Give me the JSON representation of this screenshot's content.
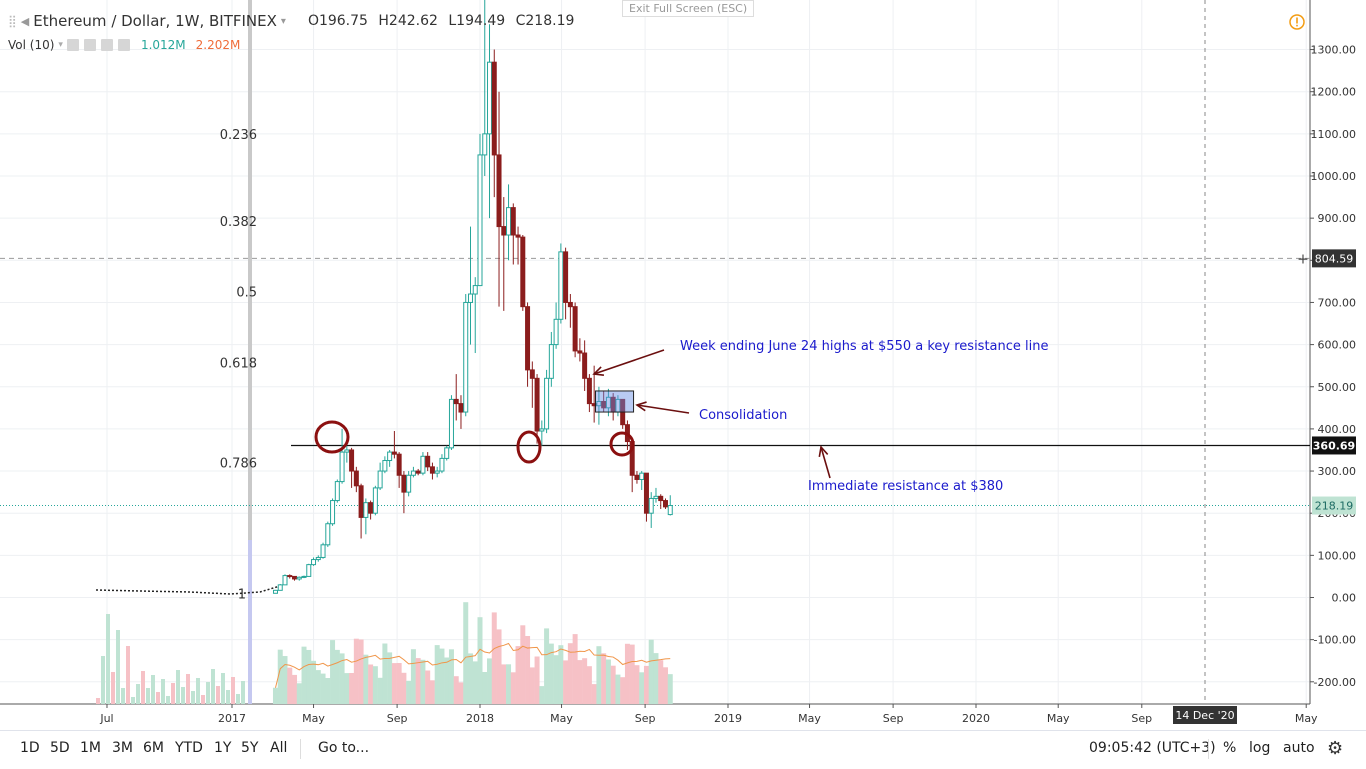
{
  "header": {
    "symbol": "Ethereum / Dollar, 1W, BITFINEX",
    "open": "O196.75",
    "high": "H242.62",
    "low": "L194.49",
    "close": "C218.19",
    "exit_fullscreen": "Exit Full Screen (ESC)"
  },
  "volume_legend": {
    "label": "Vol (10)",
    "value1": "1.012M",
    "value2": "2.202M"
  },
  "price_labels": {
    "dashed_level": "804.59",
    "support_level": "360.69",
    "last_price": "218.19"
  },
  "crosshair_date": "14 Dec '20",
  "bottom_toolbar": {
    "ranges": [
      "1D",
      "5D",
      "1M",
      "3M",
      "6M",
      "YTD",
      "1Y",
      "5Y",
      "All"
    ],
    "goto": "Go to...",
    "time": "09:05:42 (UTC+3)",
    "percent": "%",
    "log": "log",
    "auto": "auto"
  },
  "annotations": {
    "resistance_note": "Week ending June 24 highs at $550 a key resistance line",
    "consolidation": "Consolidation",
    "immediate": "Immediate resistance at $380"
  },
  "colors": {
    "up": "#26a69a",
    "down": "#8b1d1d",
    "vol_up": "#bfe3d3",
    "vol_down": "#f6c1c6",
    "annotation_text": "#1a1acc",
    "circle": "#8b1010",
    "ma": "#f0964a",
    "fib": "#333333"
  },
  "chart_data": {
    "type": "candlestick",
    "title": "Ethereum / Dollar, 1W, BITFINEX",
    "y_axis_ticks": [
      -200,
      -100,
      0,
      100,
      200,
      300,
      400,
      500,
      600,
      700,
      800,
      900,
      1000,
      1100,
      1200,
      1300
    ],
    "x_axis_ticks": [
      "Jul",
      "2017",
      "May",
      "Sep",
      "2018",
      "May",
      "Sep",
      "2019",
      "May",
      "Sep",
      "2020",
      "May",
      "Sep",
      "May"
    ],
    "fib_levels": [
      {
        "label": "0.236",
        "price": 1100
      },
      {
        "label": "0.382",
        "price": 893
      },
      {
        "label": "0.5",
        "price": 726
      },
      {
        "label": "0.618",
        "price": 558
      },
      {
        "label": "0.786",
        "price": 320
      },
      {
        "label": "1",
        "price": 10
      }
    ],
    "horizontal_lines": [
      {
        "price": 804.59,
        "style": "dashed"
      },
      {
        "price": 360.69,
        "style": "solid"
      },
      {
        "price": 218.19,
        "style": "dotted"
      }
    ],
    "consolidation_box": {
      "from": "2018-06-20",
      "to": "2018-08-15",
      "low": 440,
      "high": 490
    },
    "candles_weekly": [
      {
        "t": "2017-03-06",
        "o": 10,
        "h": 18,
        "l": 10,
        "c": 17
      },
      {
        "t": "2017-03-13",
        "o": 17,
        "h": 32,
        "l": 17,
        "c": 30
      },
      {
        "t": "2017-03-20",
        "o": 30,
        "h": 55,
        "l": 30,
        "c": 52
      },
      {
        "t": "2017-03-27",
        "o": 52,
        "h": 55,
        "l": 45,
        "c": 50
      },
      {
        "t": "2017-04-03",
        "o": 50,
        "h": 50,
        "l": 40,
        "c": 44
      },
      {
        "t": "2017-04-10",
        "o": 44,
        "h": 50,
        "l": 40,
        "c": 48
      },
      {
        "t": "2017-04-17",
        "o": 48,
        "h": 52,
        "l": 46,
        "c": 50
      },
      {
        "t": "2017-04-24",
        "o": 50,
        "h": 80,
        "l": 50,
        "c": 78
      },
      {
        "t": "2017-05-01",
        "o": 78,
        "h": 95,
        "l": 75,
        "c": 90
      },
      {
        "t": "2017-05-08",
        "o": 90,
        "h": 100,
        "l": 85,
        "c": 95
      },
      {
        "t": "2017-05-15",
        "o": 95,
        "h": 130,
        "l": 92,
        "c": 125
      },
      {
        "t": "2017-05-22",
        "o": 125,
        "h": 180,
        "l": 120,
        "c": 175
      },
      {
        "t": "2017-05-29",
        "o": 175,
        "h": 235,
        "l": 170,
        "c": 230
      },
      {
        "t": "2017-06-05",
        "o": 230,
        "h": 280,
        "l": 225,
        "c": 275
      },
      {
        "t": "2017-06-12",
        "o": 275,
        "h": 400,
        "l": 270,
        "c": 345
      },
      {
        "t": "2017-06-19",
        "o": 345,
        "h": 360,
        "l": 320,
        "c": 350
      },
      {
        "t": "2017-06-26",
        "o": 350,
        "h": 355,
        "l": 260,
        "c": 300
      },
      {
        "t": "2017-07-03",
        "o": 300,
        "h": 310,
        "l": 250,
        "c": 265
      },
      {
        "t": "2017-07-10",
        "o": 265,
        "h": 270,
        "l": 140,
        "c": 190
      },
      {
        "t": "2017-07-17",
        "o": 190,
        "h": 235,
        "l": 150,
        "c": 225
      },
      {
        "t": "2017-07-24",
        "o": 225,
        "h": 230,
        "l": 185,
        "c": 200
      },
      {
        "t": "2017-07-31",
        "o": 200,
        "h": 265,
        "l": 195,
        "c": 260
      },
      {
        "t": "2017-08-07",
        "o": 260,
        "h": 320,
        "l": 255,
        "c": 300
      },
      {
        "t": "2017-08-14",
        "o": 300,
        "h": 335,
        "l": 295,
        "c": 325
      },
      {
        "t": "2017-08-21",
        "o": 325,
        "h": 350,
        "l": 310,
        "c": 345
      },
      {
        "t": "2017-08-28",
        "o": 345,
        "h": 395,
        "l": 330,
        "c": 340
      },
      {
        "t": "2017-09-04",
        "o": 340,
        "h": 345,
        "l": 260,
        "c": 290
      },
      {
        "t": "2017-09-11",
        "o": 290,
        "h": 300,
        "l": 200,
        "c": 250
      },
      {
        "t": "2017-09-18",
        "o": 250,
        "h": 300,
        "l": 240,
        "c": 290
      },
      {
        "t": "2017-09-25",
        "o": 290,
        "h": 310,
        "l": 285,
        "c": 300
      },
      {
        "t": "2017-10-02",
        "o": 300,
        "h": 305,
        "l": 290,
        "c": 295
      },
      {
        "t": "2017-10-09",
        "o": 295,
        "h": 345,
        "l": 290,
        "c": 335
      },
      {
        "t": "2017-10-16",
        "o": 335,
        "h": 345,
        "l": 300,
        "c": 310
      },
      {
        "t": "2017-10-23",
        "o": 310,
        "h": 320,
        "l": 280,
        "c": 295
      },
      {
        "t": "2017-10-30",
        "o": 295,
        "h": 310,
        "l": 285,
        "c": 300
      },
      {
        "t": "2017-11-06",
        "o": 300,
        "h": 340,
        "l": 295,
        "c": 330
      },
      {
        "t": "2017-11-13",
        "o": 330,
        "h": 360,
        "l": 325,
        "c": 355
      },
      {
        "t": "2017-11-20",
        "o": 355,
        "h": 480,
        "l": 350,
        "c": 470
      },
      {
        "t": "2017-11-27",
        "o": 470,
        "h": 530,
        "l": 420,
        "c": 460
      },
      {
        "t": "2017-12-04",
        "o": 460,
        "h": 480,
        "l": 400,
        "c": 440
      },
      {
        "t": "2017-12-11",
        "o": 440,
        "h": 720,
        "l": 430,
        "c": 700
      },
      {
        "t": "2017-12-18",
        "o": 700,
        "h": 880,
        "l": 600,
        "c": 720
      },
      {
        "t": "2017-12-25",
        "o": 720,
        "h": 760,
        "l": 580,
        "c": 740
      },
      {
        "t": "2018-01-01",
        "o": 740,
        "h": 1100,
        "l": 740,
        "c": 1050
      },
      {
        "t": "2018-01-08",
        "o": 1050,
        "h": 1420,
        "l": 1000,
        "c": 1100
      },
      {
        "t": "2018-01-15",
        "o": 1100,
        "h": 1360,
        "l": 900,
        "c": 1270
      },
      {
        "t": "2018-01-22",
        "o": 1270,
        "h": 1300,
        "l": 950,
        "c": 1050
      },
      {
        "t": "2018-01-29",
        "o": 1050,
        "h": 1200,
        "l": 690,
        "c": 880
      },
      {
        "t": "2018-02-05",
        "o": 880,
        "h": 950,
        "l": 680,
        "c": 860
      },
      {
        "t": "2018-02-12",
        "o": 860,
        "h": 980,
        "l": 800,
        "c": 925
      },
      {
        "t": "2018-02-19",
        "o": 925,
        "h": 935,
        "l": 790,
        "c": 860
      },
      {
        "t": "2018-02-26",
        "o": 860,
        "h": 880,
        "l": 790,
        "c": 855
      },
      {
        "t": "2018-03-05",
        "o": 855,
        "h": 860,
        "l": 680,
        "c": 690
      },
      {
        "t": "2018-03-12",
        "o": 690,
        "h": 700,
        "l": 500,
        "c": 540
      },
      {
        "t": "2018-03-19",
        "o": 540,
        "h": 560,
        "l": 450,
        "c": 520
      },
      {
        "t": "2018-03-26",
        "o": 520,
        "h": 530,
        "l": 365,
        "c": 395
      },
      {
        "t": "2018-04-02",
        "o": 395,
        "h": 420,
        "l": 360,
        "c": 400
      },
      {
        "t": "2018-04-09",
        "o": 400,
        "h": 540,
        "l": 390,
        "c": 520
      },
      {
        "t": "2018-04-16",
        "o": 520,
        "h": 630,
        "l": 500,
        "c": 600
      },
      {
        "t": "2018-04-23",
        "o": 600,
        "h": 700,
        "l": 590,
        "c": 660
      },
      {
        "t": "2018-04-30",
        "o": 660,
        "h": 840,
        "l": 650,
        "c": 820
      },
      {
        "t": "2018-05-07",
        "o": 820,
        "h": 830,
        "l": 660,
        "c": 700
      },
      {
        "t": "2018-05-14",
        "o": 700,
        "h": 720,
        "l": 640,
        "c": 690
      },
      {
        "t": "2018-05-21",
        "o": 690,
        "h": 700,
        "l": 570,
        "c": 585
      },
      {
        "t": "2018-05-28",
        "o": 585,
        "h": 615,
        "l": 560,
        "c": 580
      },
      {
        "t": "2018-06-04",
        "o": 580,
        "h": 610,
        "l": 490,
        "c": 520
      },
      {
        "t": "2018-06-11",
        "o": 520,
        "h": 530,
        "l": 440,
        "c": 460
      },
      {
        "t": "2018-06-18",
        "o": 460,
        "h": 550,
        "l": 415,
        "c": 455
      },
      {
        "t": "2018-06-25",
        "o": 455,
        "h": 500,
        "l": 410,
        "c": 465
      },
      {
        "t": "2018-07-02",
        "o": 465,
        "h": 490,
        "l": 440,
        "c": 450
      },
      {
        "t": "2018-07-09",
        "o": 450,
        "h": 495,
        "l": 430,
        "c": 475
      },
      {
        "t": "2018-07-16",
        "o": 475,
        "h": 485,
        "l": 420,
        "c": 440
      },
      {
        "t": "2018-07-23",
        "o": 440,
        "h": 480,
        "l": 430,
        "c": 470
      },
      {
        "t": "2018-07-30",
        "o": 470,
        "h": 470,
        "l": 400,
        "c": 410
      },
      {
        "t": "2018-08-06",
        "o": 410,
        "h": 420,
        "l": 350,
        "c": 370
      },
      {
        "t": "2018-08-13",
        "o": 370,
        "h": 375,
        "l": 250,
        "c": 290
      },
      {
        "t": "2018-08-20",
        "o": 290,
        "h": 300,
        "l": 270,
        "c": 280
      },
      {
        "t": "2018-08-27",
        "o": 280,
        "h": 300,
        "l": 255,
        "c": 295
      },
      {
        "t": "2018-09-03",
        "o": 295,
        "h": 295,
        "l": 180,
        "c": 200
      },
      {
        "t": "2018-09-10",
        "o": 200,
        "h": 250,
        "l": 165,
        "c": 235
      },
      {
        "t": "2018-09-17",
        "o": 235,
        "h": 260,
        "l": 225,
        "c": 240
      },
      {
        "t": "2018-09-24",
        "o": 240,
        "h": 245,
        "l": 210,
        "c": 230
      },
      {
        "t": "2018-10-01",
        "o": 230,
        "h": 235,
        "l": 210,
        "c": 215
      },
      {
        "t": "2018-10-08",
        "o": 196.75,
        "h": 242.62,
        "l": 194.49,
        "c": 218.19
      }
    ],
    "volume_ma_label": "Vol (10)"
  }
}
